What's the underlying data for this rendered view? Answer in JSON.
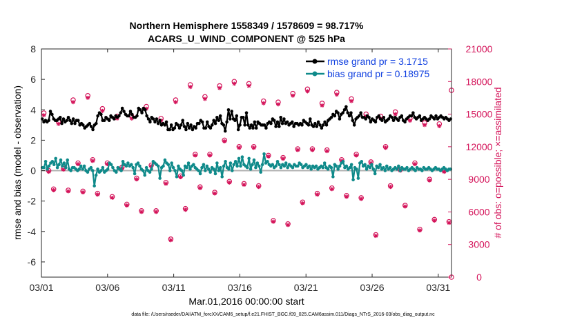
{
  "chart_data": {
    "type": "line",
    "title_line1": "Northern Hemisphere 1558349 / 1578609 = 98.717%",
    "title_line2": "ACARS_U_WIND_COMPONENT @ 525 hPa",
    "xlabel": "Mar.01,2016 00:00:00 start",
    "ylabel_left": "rmse and bias (model - observation)",
    "ylabel_right": "# of obs: o=possible; ×=assimilated",
    "footer": "data file: /Users/raeder/DAI/ATM_forcXX/CAM6_setup/f.e21.FHIST_BGC.f09_025.CAM6assim.011/Diags_NTrS_2016-03/obs_diag_output.nc",
    "xlim": [
      0,
      31
    ],
    "ylim_left": [
      -7,
      8
    ],
    "ylim_right": [
      0,
      21000
    ],
    "x_ticks": [
      0,
      5,
      10,
      15,
      20,
      25,
      30
    ],
    "x_tick_labels": [
      "03/01",
      "03/06",
      "03/11",
      "03/16",
      "03/21",
      "03/26",
      "03/31"
    ],
    "y_ticks_left": [
      -6,
      -4,
      -2,
      0,
      2,
      4,
      6,
      8
    ],
    "y_ticks_right": [
      0,
      3000,
      6000,
      9000,
      12000,
      15000,
      18000,
      21000
    ],
    "colors": {
      "rmse": "#000000",
      "bias": "#0f8a8a",
      "obs": "#d4145a",
      "zero_line": "#b0b0b0",
      "legend_text": "#1040e0"
    },
    "legend": [
      {
        "name": "rmse grand pr = 3.1715",
        "color": "#000000"
      },
      {
        "name": "bias grand pr = 0.18975",
        "color": "#0f8a8a"
      }
    ],
    "series": [
      {
        "name": "rmse",
        "values": [
          3.4,
          3.2,
          3.3,
          3.2,
          3.3,
          3.9,
          3.7,
          3.4,
          3.3,
          3.3,
          3.4,
          3.5,
          3.1,
          3.4,
          3.2,
          3.3,
          3.5,
          3.3,
          3.1,
          3.4,
          3.1,
          3.3,
          3.3,
          3.0,
          3.1,
          3.0,
          2.8,
          2.9,
          3.0,
          3.1,
          2.9,
          2.7,
          3.0,
          3.1,
          3.6,
          3.8,
          3.7,
          3.3,
          3.3,
          3.5,
          3.4,
          3.3,
          3.6,
          3.5,
          3.4,
          3.6,
          3.5,
          3.6,
          3.8,
          4.1,
          3.9,
          3.7,
          3.6,
          3.6,
          3.9,
          3.7,
          3.5,
          3.5,
          3.6,
          4.1,
          4.0,
          3.8,
          4.1,
          4.0,
          3.6,
          3.4,
          3.2,
          3.5,
          3.4,
          3.2,
          3.4,
          3.1,
          3.3,
          3.0,
          3.1,
          3.0,
          3.2,
          2.7,
          2.7,
          3.0,
          2.7,
          2.8,
          3.1,
          3.0,
          2.8,
          3.0,
          3.3,
          2.9,
          2.7,
          3.1,
          2.8,
          3.0,
          2.7,
          2.9,
          2.8,
          3.1,
          3.1,
          3.3,
          3.2,
          2.8,
          2.8,
          3.2,
          2.9,
          2.8,
          3.0,
          3.3,
          3.1,
          3.5,
          3.3,
          3.6,
          3.1,
          3.0,
          2.6,
          3.2,
          4.0,
          3.4,
          3.9,
          3.4,
          3.3,
          3.6,
          2.7,
          3.0,
          3.5,
          3.5,
          3.0,
          3.8,
          3.0,
          2.8,
          3.0,
          2.8,
          3.2,
          2.8,
          3.2,
          3.1,
          3.0,
          3.0,
          3.0,
          2.8,
          3.1,
          3.2,
          3.1,
          3.4,
          3.3,
          2.9,
          3.2,
          2.9,
          3.5,
          3.1,
          3.4,
          3.1,
          3.2,
          3.0,
          3.1,
          3.2,
          2.9,
          3.1,
          3.1,
          3.0,
          3.1,
          3.0,
          3.3,
          3.2,
          3.1,
          3.0,
          3.4,
          3.0,
          2.9,
          3.1,
          2.9,
          3.2,
          3.0,
          2.8,
          3.0,
          3.2,
          3.0,
          3.3,
          3.4,
          3.5,
          3.7,
          3.6,
          3.9,
          3.8,
          3.4,
          3.7,
          3.8,
          4.0,
          4.2,
          3.8,
          3.6,
          3.8,
          3.3,
          3.0,
          3.4,
          3.5,
          3.6,
          3.8,
          3.5,
          3.5,
          3.4,
          3.6,
          3.5,
          3.2,
          3.4,
          3.3,
          3.2,
          3.5,
          3.6,
          3.4,
          3.3,
          3.5,
          3.2,
          3.3,
          3.4,
          3.6,
          3.5,
          3.3,
          3.5,
          3.4,
          3.3,
          3.5,
          3.6,
          3.3,
          3.2,
          3.4,
          3.5,
          3.6,
          3.6,
          3.8,
          3.5,
          3.4,
          3.5,
          3.6,
          3.3,
          3.4,
          3.5,
          3.4,
          3.3,
          3.4,
          3.6,
          3.5,
          3.4,
          3.6,
          3.4,
          3.5,
          3.6,
          3.5,
          3.4,
          3.5,
          3.4,
          3.3,
          3.4
        ]
      },
      {
        "name": "bias",
        "values": [
          0.2,
          0.2,
          0.6,
          0.1,
          0.3,
          0.5,
          0.6,
          0.4,
          0.8,
          0.2,
          0.4,
          0.7,
          0.3,
          0.5,
          0.2,
          0.7,
          0.1,
          0.0,
          0.2,
          0.2,
          0.1,
          0.0,
          0.1,
          0.3,
          0.1,
          0.3,
          0.0,
          -0.1,
          0.1,
          0.2,
          0.0,
          -1.0,
          -0.3,
          0.1,
          -0.1,
          0.0,
          0.2,
          -0.1,
          0.0,
          0.1,
          0.5,
          0.4,
          0.2,
          0.0,
          -0.1,
          0.2,
          0.1,
          0.0,
          0.6,
          0.4,
          0.3,
          0.5,
          0.3,
          0.4,
          0.2,
          -0.2,
          0.4,
          0.5,
          0.3,
          0.1,
          0.0,
          -0.3,
          0.2,
          0.0,
          -0.1,
          0.1,
          0.6,
          0.5,
          0.4,
          0.3,
          -0.5,
          0.2,
          0.3,
          0.7,
          0.5,
          0.4,
          0.0,
          0.5,
          0.2,
          0.0,
          -0.4,
          0.3,
          0.1,
          0.0,
          -0.3,
          0.3,
          0.2,
          0.5,
          0.1,
          0.3,
          0.4,
          0.2,
          0.1,
          0.0,
          -0.2,
          0.2,
          0.4,
          0.0,
          0.3,
          0.1,
          -0.1,
          0.2,
          0.1,
          -0.2,
          0.5,
          0.0,
          0.2,
          -0.4,
          0.3,
          0.6,
          0.2,
          0.1,
          0.5,
          0.0,
          0.4,
          0.6,
          0.3,
          0.8,
          0.3,
          0.9,
          0.4,
          0.3,
          0.2,
          0.8,
          0.1,
          0.4,
          0.7,
          0.2,
          0.5,
          0.3,
          -0.1,
          0.4,
          1.1,
          0.5,
          0.6,
          0.4,
          0.3,
          0.4,
          0.2,
          0.3,
          0.6,
          0.4,
          0.2,
          0.4,
          0.3,
          0.5,
          0.2,
          0.4,
          0.3,
          0.2,
          0.4,
          0.3,
          0.3,
          0.5,
          0.4,
          0.2,
          0.3,
          0.4,
          0.2,
          0.3,
          0.1,
          0.3,
          0.2,
          0.3,
          0.1,
          0.2,
          0.3,
          0.2,
          0.5,
          0.2,
          0.1,
          0.3,
          0.2,
          -0.4,
          0.4,
          0.3,
          0.1,
          0.3,
          0.5,
          0.6,
          0.2,
          0.3,
          0.1,
          0.2,
          0.4,
          -0.6,
          0.2,
          0.1,
          -0.5,
          0.5,
          0.6,
          0.3,
          0.4,
          0.1,
          0.3,
          0.2,
          0.4,
          0.1,
          -0.2,
          0.3,
          0.2,
          0.4,
          0.1,
          0.2,
          0.0,
          0.3,
          0.1,
          0.2,
          0.0,
          0.1,
          0.2,
          0.1,
          0.3,
          0.0,
          0.2,
          0.1,
          0.1,
          0.2,
          0.0,
          0.1,
          0.2,
          0.1,
          0.0,
          0.2,
          0.1,
          0.1,
          0.0,
          0.2,
          0.1,
          0.1,
          0.2,
          0.1,
          0.0,
          0.1,
          0.2,
          0.1,
          0.1,
          0.0,
          0.1,
          0.2,
          0.1,
          0.0,
          0.1,
          0.1
        ]
      },
      {
        "name": "obs_possible",
        "values": [
          15100,
          9800,
          8100,
          14300,
          10000,
          8000,
          16300,
          10500,
          7900,
          16700,
          10800,
          7700,
          15500,
          10500,
          7400,
          14800,
          10100,
          6700,
          14800,
          9100,
          6100,
          15700,
          10300,
          6100,
          14600,
          8700,
          3500,
          16300,
          9300,
          6300,
          17700,
          11300,
          8300,
          16600,
          11300,
          7800,
          17600,
          12600,
          8800,
          18000,
          12000,
          8600,
          17800,
          12000,
          8400,
          16200,
          11200,
          5200,
          16100,
          11000,
          4900,
          16900,
          11800,
          6900,
          17300,
          11800,
          7700,
          16000,
          11700,
          8200,
          17000,
          10800,
          7500,
          16400,
          11300,
          7300,
          15000,
          10600,
          3900,
          14800,
          12000,
          8400,
          15200,
          9900,
          6600,
          14600,
          10500,
          4400,
          14200,
          9000,
          5300,
          14100,
          9800,
          5100
        ]
      },
      {
        "name": "obs_assimilated",
        "values": [
          14900,
          9700,
          8000,
          14100,
          9900,
          7900,
          16100,
          10400,
          7800,
          16500,
          10700,
          7600,
          15300,
          10400,
          7300,
          14600,
          10000,
          6600,
          14600,
          9000,
          6000,
          15500,
          10200,
          6000,
          14400,
          8600,
          3400,
          16100,
          9200,
          6200,
          17500,
          11200,
          8200,
          16400,
          11200,
          7700,
          17400,
          12500,
          8700,
          17800,
          11900,
          8500,
          17600,
          11900,
          8300,
          16000,
          11100,
          5100,
          15900,
          10900,
          4800,
          16700,
          11700,
          6800,
          17100,
          11700,
          7600,
          15800,
          11600,
          8100,
          16800,
          10700,
          7400,
          16200,
          11200,
          7200,
          14800,
          10500,
          3800,
          14600,
          11900,
          8300,
          15000,
          9800,
          6500,
          14400,
          10400,
          4300,
          14000,
          8900,
          5200,
          13900,
          9700,
          5000
        ]
      },
      {
        "name": "obs_extra_possible",
        "values": [
          0,
          17200
        ]
      }
    ]
  }
}
